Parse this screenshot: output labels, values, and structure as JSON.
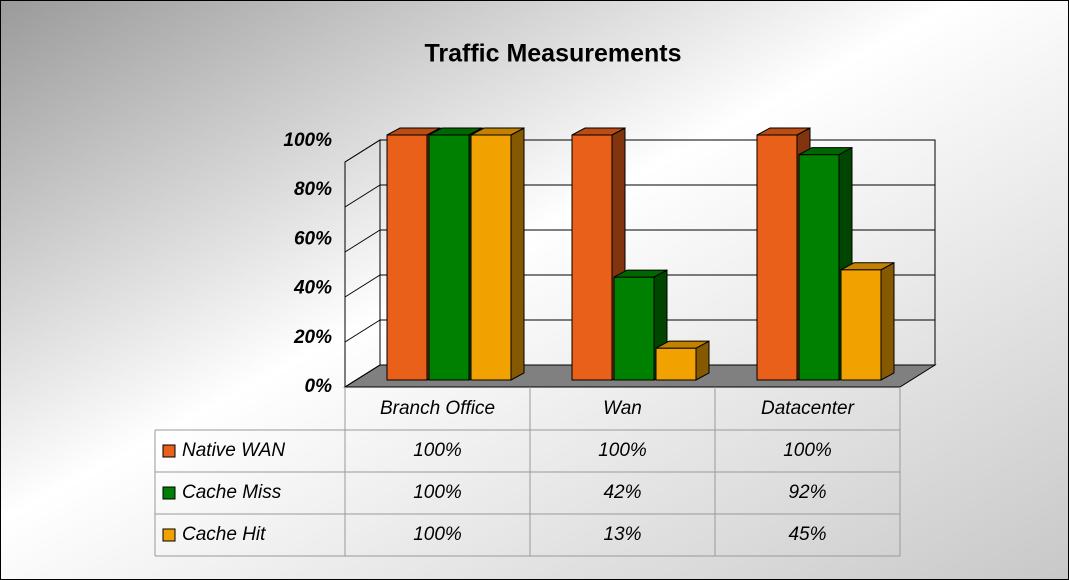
{
  "chart_data": {
    "type": "bar3d",
    "title": "Traffic Measurements",
    "categories": [
      "Branch Office",
      "Wan",
      "Datacenter"
    ],
    "series": [
      {
        "name": "Native WAN",
        "color": "#e8601a",
        "values": [
          100,
          100,
          100
        ],
        "value_labels": [
          "100%",
          "100%",
          "100%"
        ]
      },
      {
        "name": "Cache Miss",
        "color": "#008000",
        "values": [
          100,
          42,
          92
        ],
        "value_labels": [
          "100%",
          "42%",
          "92%"
        ]
      },
      {
        "name": "Cache Hit",
        "color": "#f2a200",
        "values": [
          100,
          13,
          45
        ],
        "value_labels": [
          "100%",
          "13%",
          "45%"
        ]
      }
    ],
    "ylim": [
      0,
      100
    ],
    "yticks": [
      {
        "value": 0,
        "label": "0%"
      },
      {
        "value": 20,
        "label": "20%"
      },
      {
        "value": 40,
        "label": "40%"
      },
      {
        "value": 60,
        "label": "60%"
      },
      {
        "value": 80,
        "label": "80%"
      },
      {
        "value": 100,
        "label": "100%"
      }
    ],
    "grid": true
  }
}
